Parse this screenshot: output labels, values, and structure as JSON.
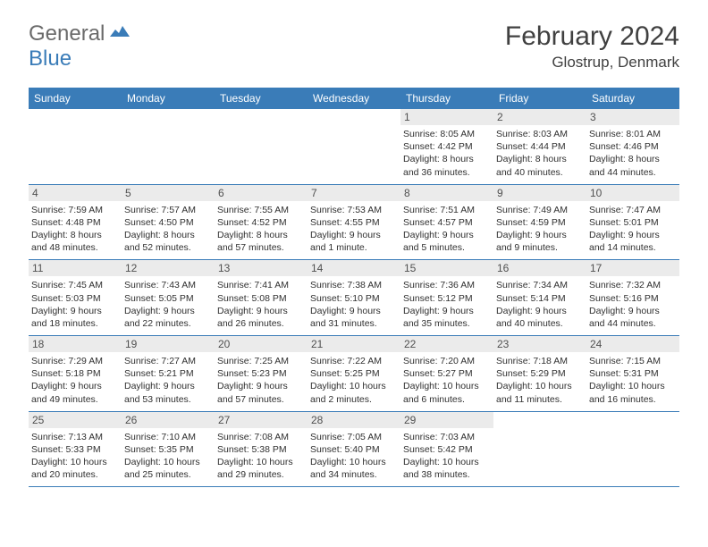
{
  "brand": {
    "general": "General",
    "blue": "Blue"
  },
  "title": "February 2024",
  "location": "Glostrup, Denmark",
  "colors": {
    "header_bg": "#3a7cb8",
    "daynum_bg": "#ebebeb",
    "border": "#3a7cb8",
    "text": "#303030",
    "title_text": "#404040"
  },
  "weekdays": [
    "Sunday",
    "Monday",
    "Tuesday",
    "Wednesday",
    "Thursday",
    "Friday",
    "Saturday"
  ],
  "weeks": [
    [
      null,
      null,
      null,
      null,
      {
        "n": "1",
        "sr": "8:05 AM",
        "ss": "4:42 PM",
        "dl": "8 hours and 36 minutes."
      },
      {
        "n": "2",
        "sr": "8:03 AM",
        "ss": "4:44 PM",
        "dl": "8 hours and 40 minutes."
      },
      {
        "n": "3",
        "sr": "8:01 AM",
        "ss": "4:46 PM",
        "dl": "8 hours and 44 minutes."
      }
    ],
    [
      {
        "n": "4",
        "sr": "7:59 AM",
        "ss": "4:48 PM",
        "dl": "8 hours and 48 minutes."
      },
      {
        "n": "5",
        "sr": "7:57 AM",
        "ss": "4:50 PM",
        "dl": "8 hours and 52 minutes."
      },
      {
        "n": "6",
        "sr": "7:55 AM",
        "ss": "4:52 PM",
        "dl": "8 hours and 57 minutes."
      },
      {
        "n": "7",
        "sr": "7:53 AM",
        "ss": "4:55 PM",
        "dl": "9 hours and 1 minute."
      },
      {
        "n": "8",
        "sr": "7:51 AM",
        "ss": "4:57 PM",
        "dl": "9 hours and 5 minutes."
      },
      {
        "n": "9",
        "sr": "7:49 AM",
        "ss": "4:59 PM",
        "dl": "9 hours and 9 minutes."
      },
      {
        "n": "10",
        "sr": "7:47 AM",
        "ss": "5:01 PM",
        "dl": "9 hours and 14 minutes."
      }
    ],
    [
      {
        "n": "11",
        "sr": "7:45 AM",
        "ss": "5:03 PM",
        "dl": "9 hours and 18 minutes."
      },
      {
        "n": "12",
        "sr": "7:43 AM",
        "ss": "5:05 PM",
        "dl": "9 hours and 22 minutes."
      },
      {
        "n": "13",
        "sr": "7:41 AM",
        "ss": "5:08 PM",
        "dl": "9 hours and 26 minutes."
      },
      {
        "n": "14",
        "sr": "7:38 AM",
        "ss": "5:10 PM",
        "dl": "9 hours and 31 minutes."
      },
      {
        "n": "15",
        "sr": "7:36 AM",
        "ss": "5:12 PM",
        "dl": "9 hours and 35 minutes."
      },
      {
        "n": "16",
        "sr": "7:34 AM",
        "ss": "5:14 PM",
        "dl": "9 hours and 40 minutes."
      },
      {
        "n": "17",
        "sr": "7:32 AM",
        "ss": "5:16 PM",
        "dl": "9 hours and 44 minutes."
      }
    ],
    [
      {
        "n": "18",
        "sr": "7:29 AM",
        "ss": "5:18 PM",
        "dl": "9 hours and 49 minutes."
      },
      {
        "n": "19",
        "sr": "7:27 AM",
        "ss": "5:21 PM",
        "dl": "9 hours and 53 minutes."
      },
      {
        "n": "20",
        "sr": "7:25 AM",
        "ss": "5:23 PM",
        "dl": "9 hours and 57 minutes."
      },
      {
        "n": "21",
        "sr": "7:22 AM",
        "ss": "5:25 PM",
        "dl": "10 hours and 2 minutes."
      },
      {
        "n": "22",
        "sr": "7:20 AM",
        "ss": "5:27 PM",
        "dl": "10 hours and 6 minutes."
      },
      {
        "n": "23",
        "sr": "7:18 AM",
        "ss": "5:29 PM",
        "dl": "10 hours and 11 minutes."
      },
      {
        "n": "24",
        "sr": "7:15 AM",
        "ss": "5:31 PM",
        "dl": "10 hours and 16 minutes."
      }
    ],
    [
      {
        "n": "25",
        "sr": "7:13 AM",
        "ss": "5:33 PM",
        "dl": "10 hours and 20 minutes."
      },
      {
        "n": "26",
        "sr": "7:10 AM",
        "ss": "5:35 PM",
        "dl": "10 hours and 25 minutes."
      },
      {
        "n": "27",
        "sr": "7:08 AM",
        "ss": "5:38 PM",
        "dl": "10 hours and 29 minutes."
      },
      {
        "n": "28",
        "sr": "7:05 AM",
        "ss": "5:40 PM",
        "dl": "10 hours and 34 minutes."
      },
      {
        "n": "29",
        "sr": "7:03 AM",
        "ss": "5:42 PM",
        "dl": "10 hours and 38 minutes."
      },
      null,
      null
    ]
  ],
  "labels": {
    "sunrise": "Sunrise: ",
    "sunset": "Sunset: ",
    "daylight": "Daylight: "
  }
}
